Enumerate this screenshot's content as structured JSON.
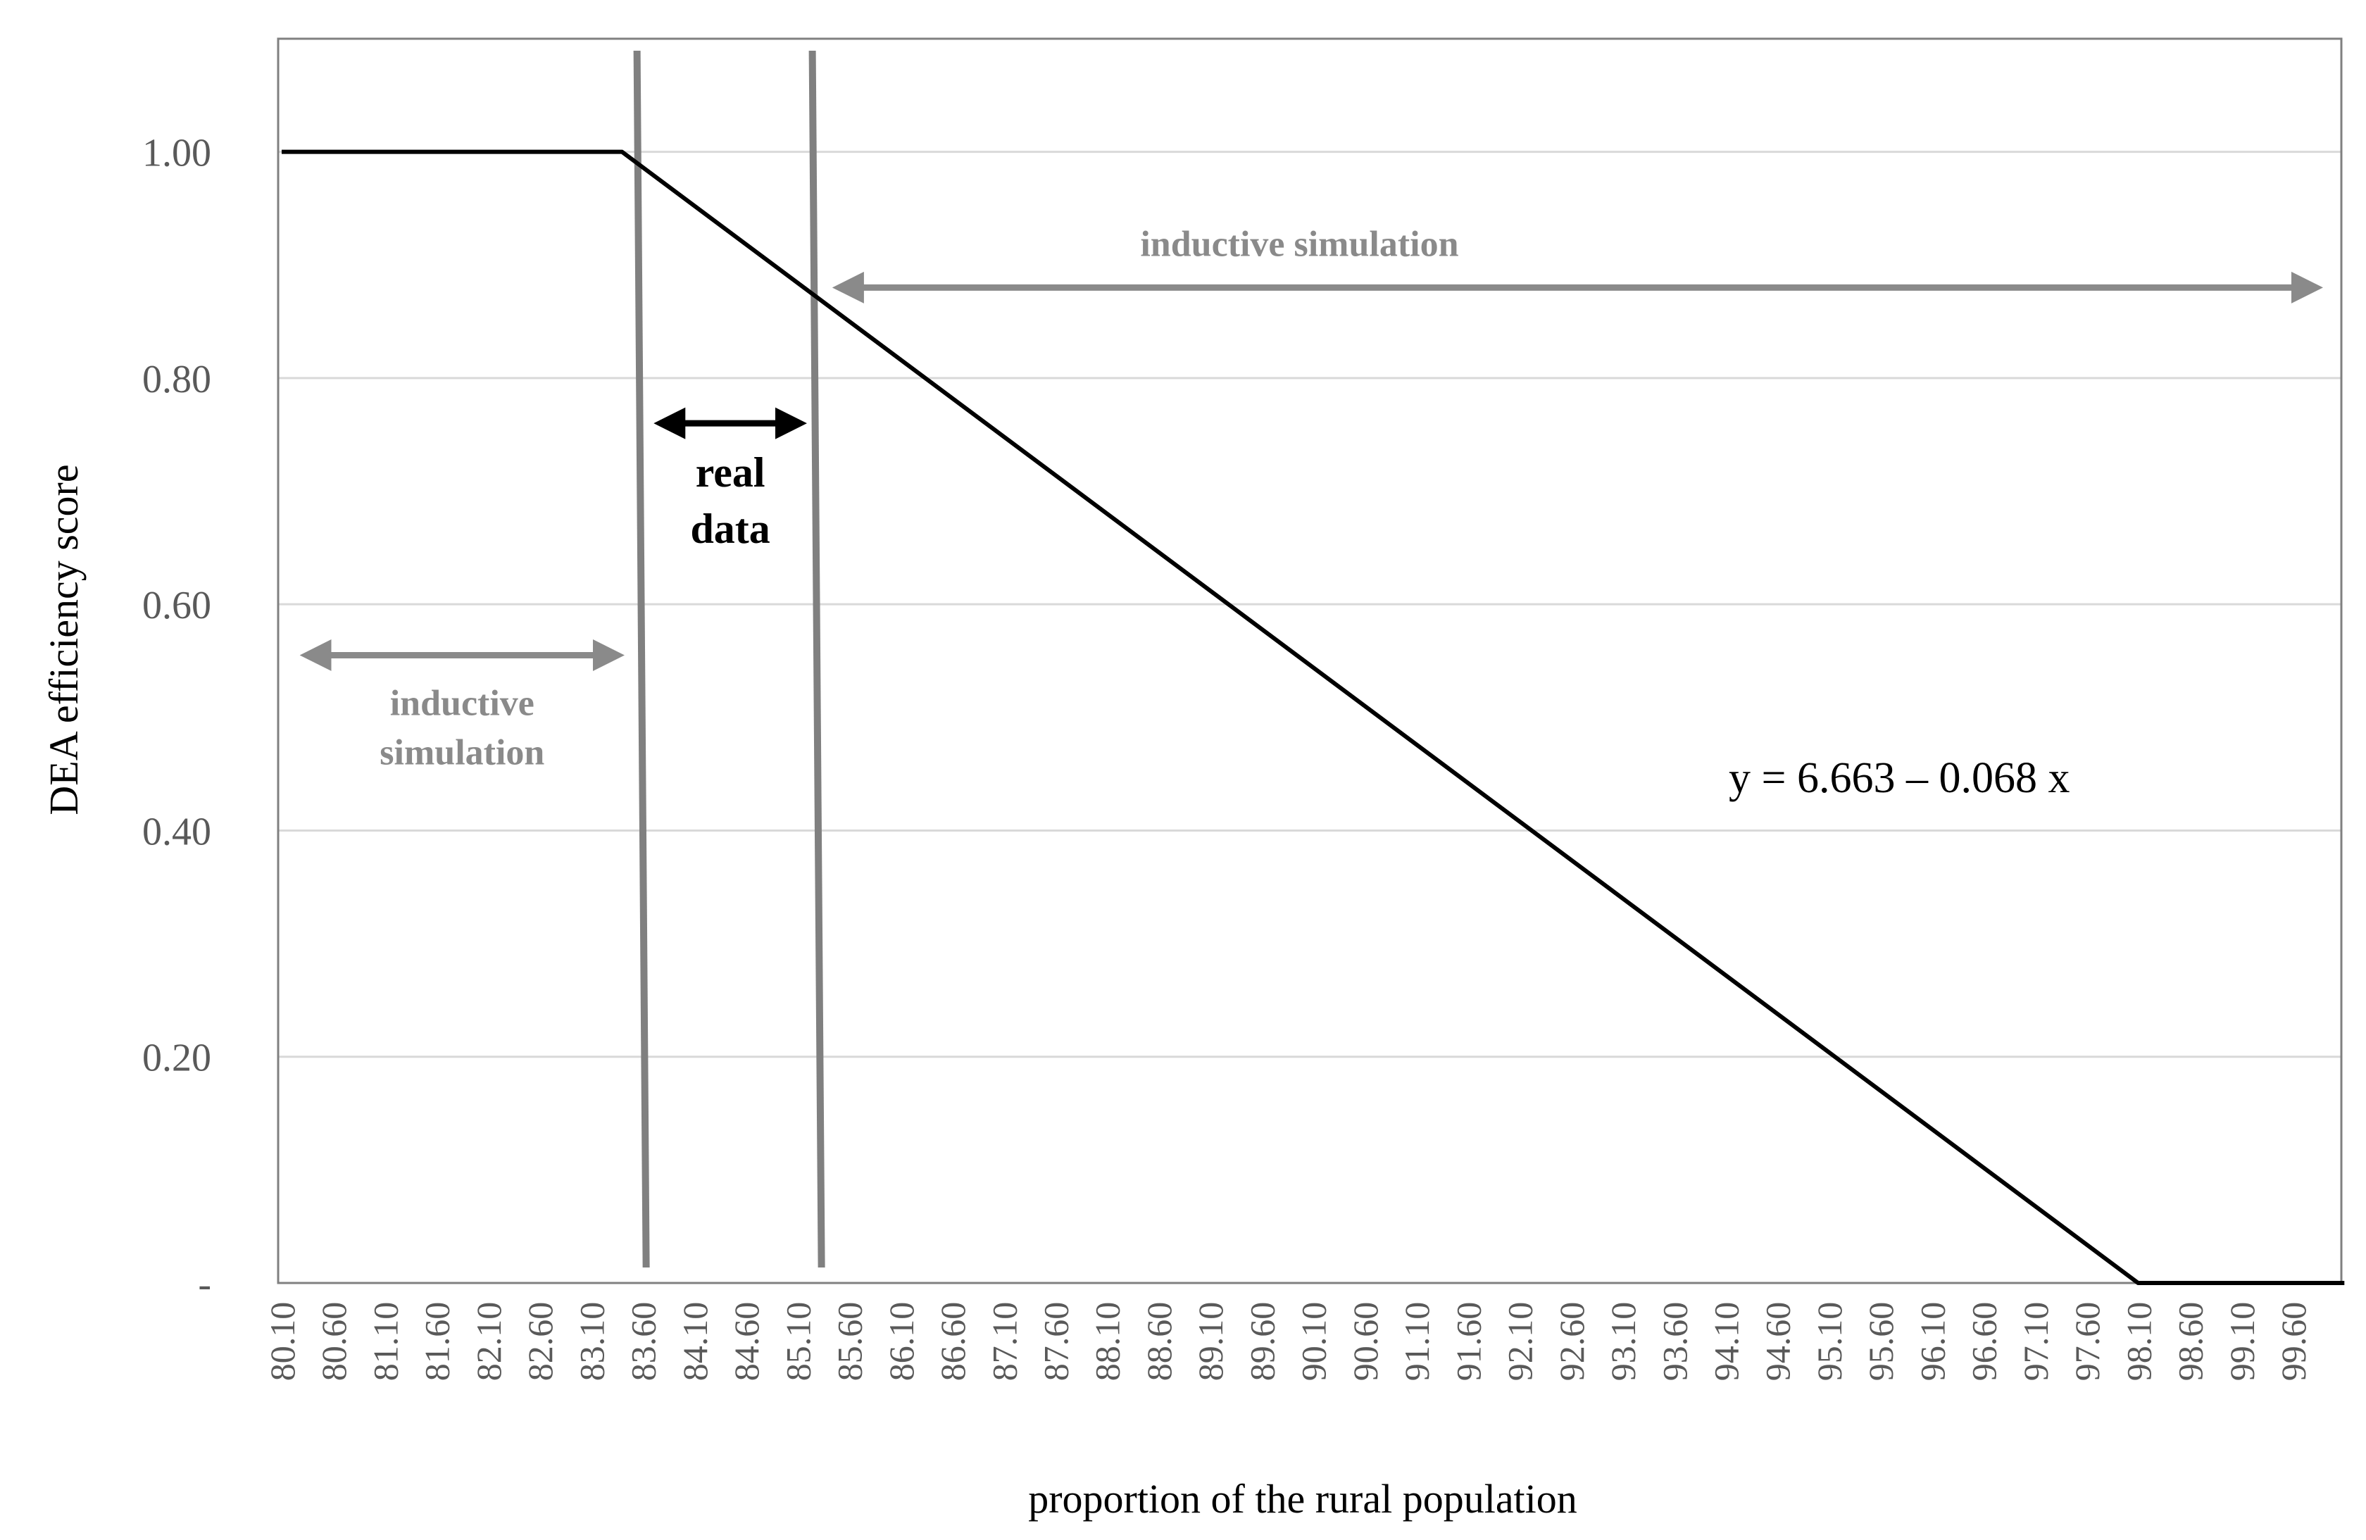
{
  "chart_data": {
    "type": "line",
    "title": "",
    "xlabel": "proportion of the rural population",
    "ylabel": "DEA efficiency score",
    "ylim": [
      0,
      1.1
    ],
    "y_ticks": [
      {
        "value": 0,
        "label": "-"
      },
      {
        "value": 0.2,
        "label": "0.20"
      },
      {
        "value": 0.4,
        "label": "0.40"
      },
      {
        "value": 0.6,
        "label": "0.60"
      },
      {
        "value": 0.8,
        "label": "0.80"
      },
      {
        "value": 1.0,
        "label": "1.00"
      }
    ],
    "x_start": 80.1,
    "x_end": 99.9,
    "x_ticks": [
      "80.10",
      "80.60",
      "81.10",
      "81.60",
      "82.10",
      "82.60",
      "83.10",
      "83.60",
      "84.10",
      "84.60",
      "85.10",
      "85.60",
      "86.10",
      "86.60",
      "87.10",
      "87.60",
      "88.10",
      "88.60",
      "89.10",
      "89.60",
      "90.10",
      "90.60",
      "91.10",
      "91.60",
      "92.10",
      "92.60",
      "93.10",
      "93.60",
      "94.10",
      "94.60",
      "95.10",
      "95.60",
      "96.10",
      "96.60",
      "97.10",
      "97.60",
      "98.10",
      "98.60",
      "99.10",
      "99.60"
    ],
    "grid": true,
    "series": [
      {
        "points": [
          [
            80.1,
            1.0
          ],
          [
            83.4,
            1.0
          ],
          [
            98.1,
            0.0
          ],
          [
            100.1,
            0.0
          ]
        ],
        "color": "#000000"
      }
    ],
    "boundaries": [
      83.6,
      85.3
    ],
    "annotations": {
      "left_region": {
        "line1": "inductive",
        "line2": "simulation",
        "from": 80.2,
        "to": 83.5,
        "y": 0.555
      },
      "middle_region": {
        "line1": "real",
        "line2": "data",
        "from": 83.7,
        "to": 85.2,
        "y": 0.76
      },
      "right_region": {
        "text": "inductive simulation",
        "from": 85.5,
        "to": 99.9,
        "y": 0.88
      },
      "equation": "y = 6.663 – 0.068 x"
    },
    "colors": {
      "line": "#000000",
      "annotation_gray": "#8a8a8a",
      "boundary_gray": "#808080",
      "grid": "#d9d9d9",
      "axis": "#808080"
    }
  }
}
